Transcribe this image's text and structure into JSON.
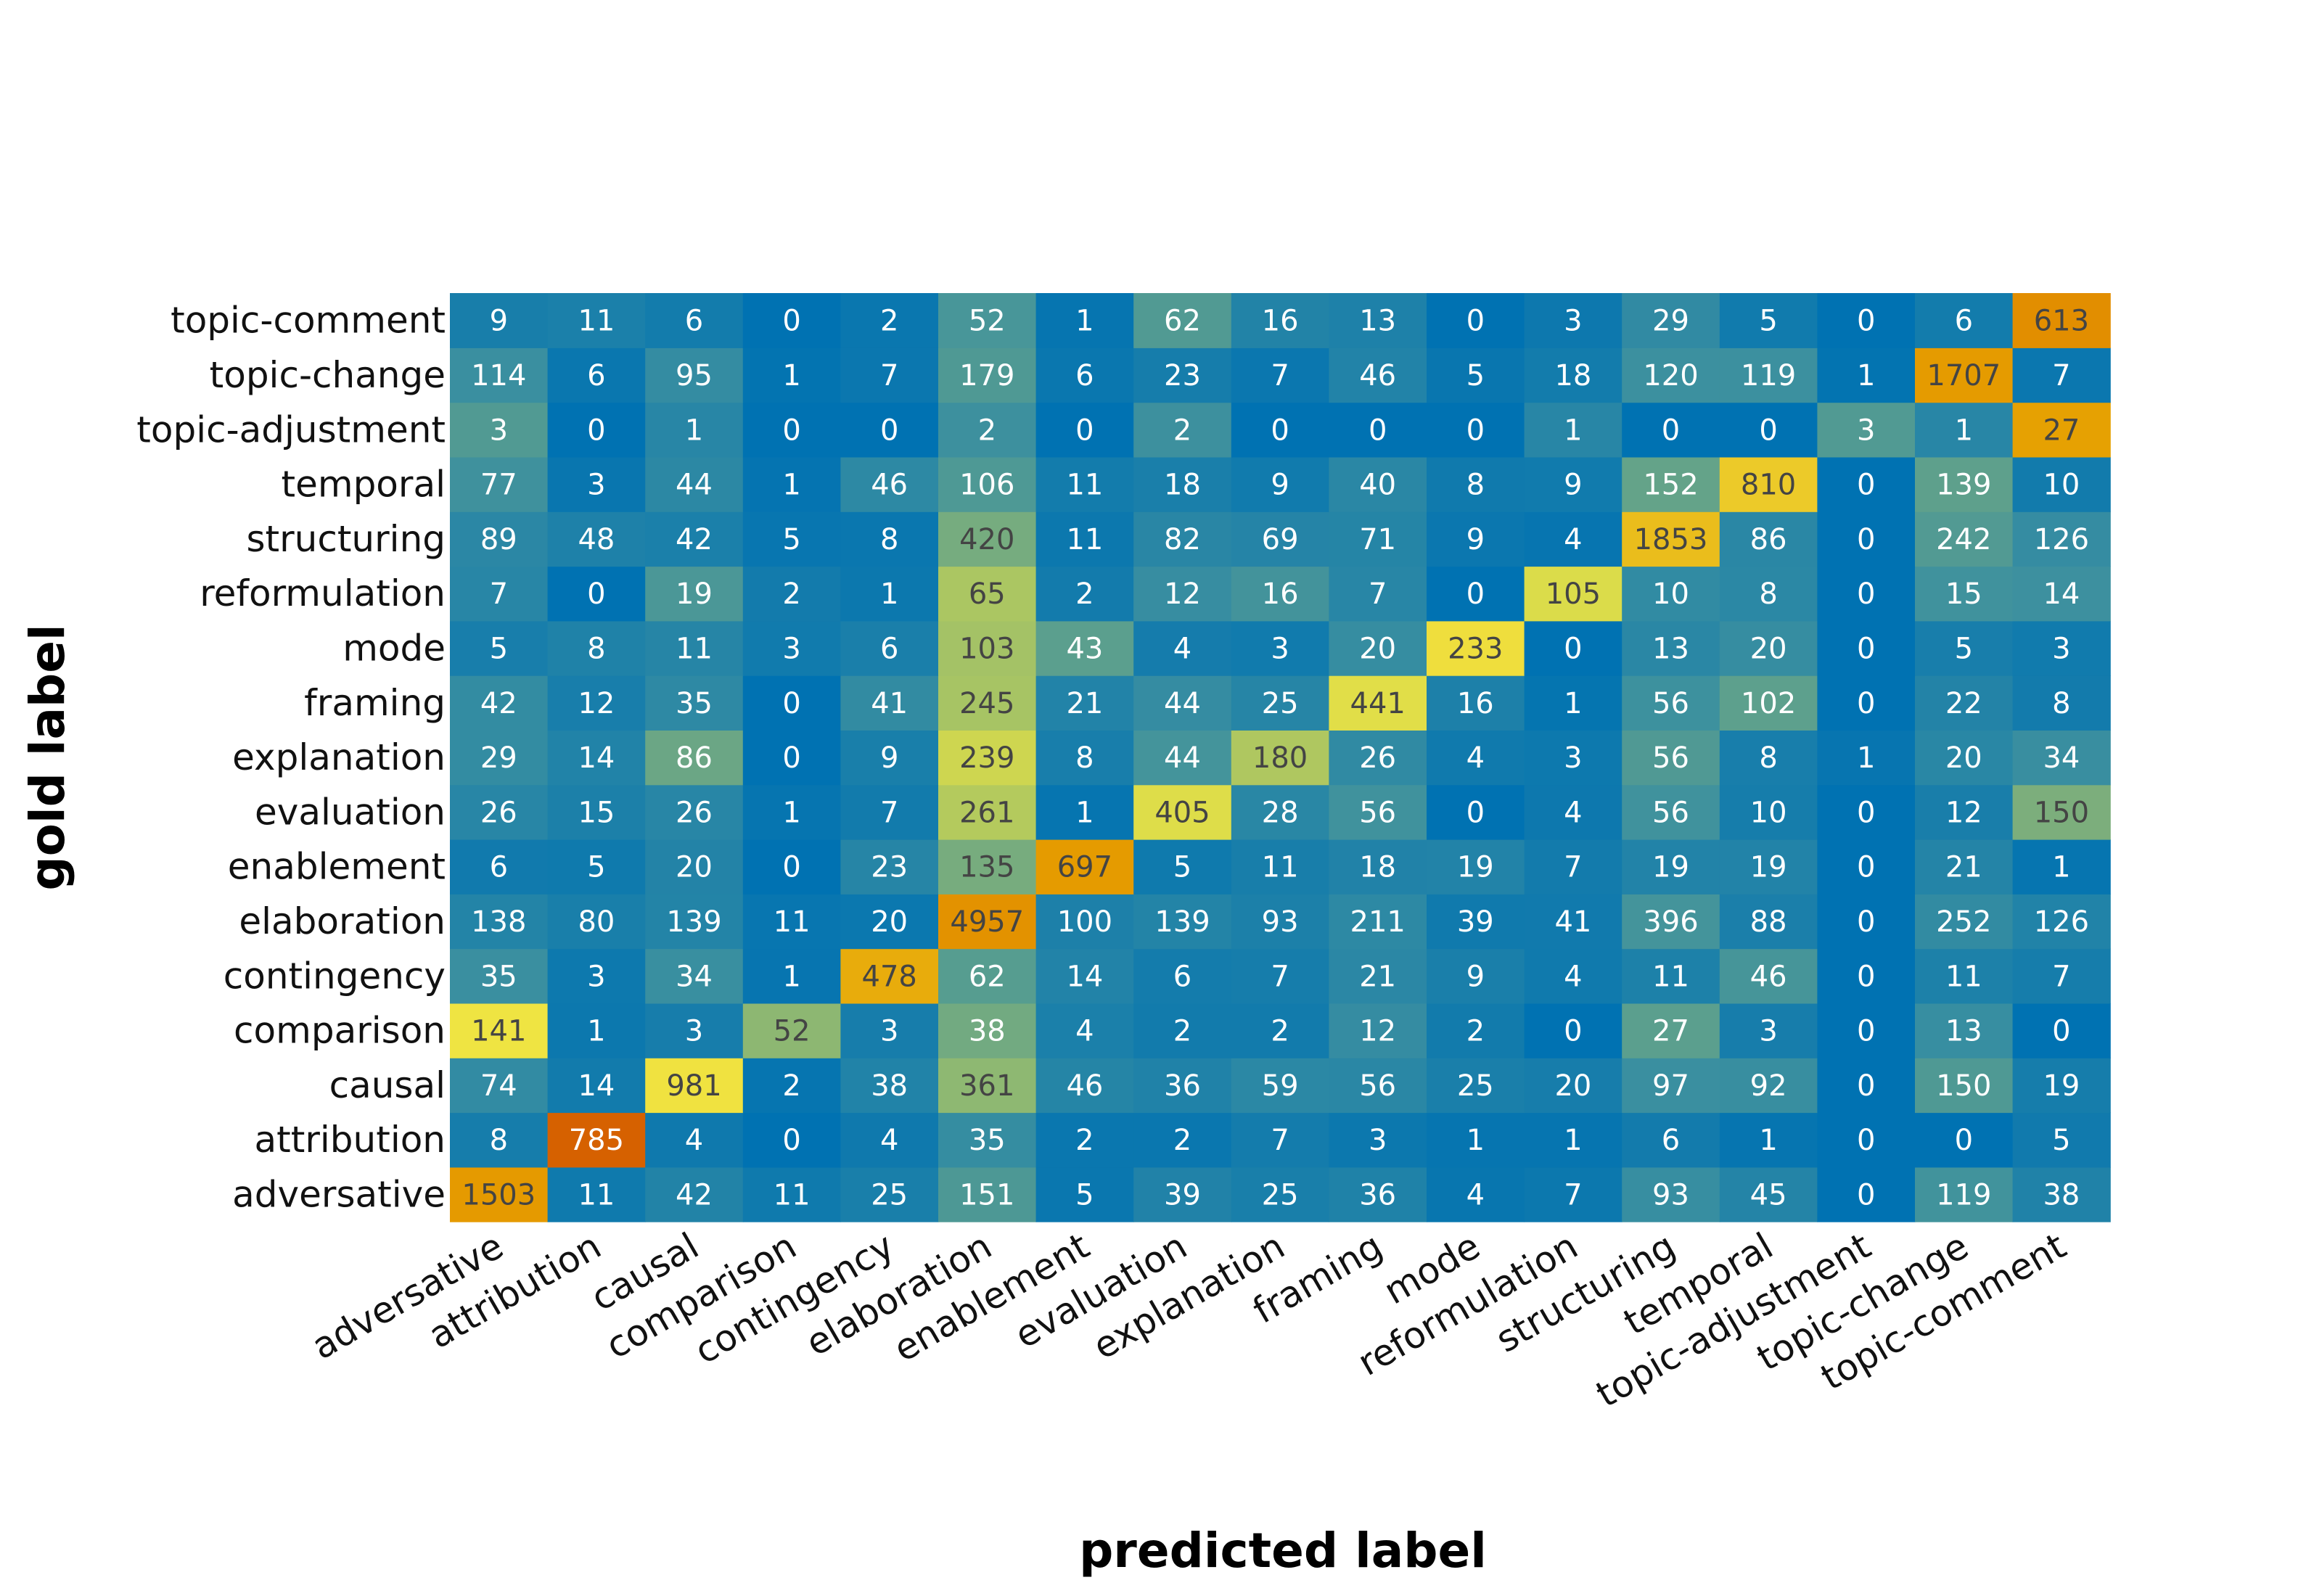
{
  "chart_data": {
    "type": "heatmap",
    "xlabel": "predicted label",
    "ylabel": "gold label",
    "x_categories": [
      "adversative",
      "attribution",
      "causal",
      "comparison",
      "contingency",
      "elaboration",
      "enablement",
      "evaluation",
      "explanation",
      "framing",
      "mode",
      "reformulation",
      "structuring",
      "temporal",
      "topic-adjustment",
      "topic-change",
      "topic-comment"
    ],
    "y_categories": [
      "adversative",
      "attribution",
      "causal",
      "comparison",
      "contingency",
      "elaboration",
      "enablement",
      "evaluation",
      "explanation",
      "framing",
      "mode",
      "reformulation",
      "structuring",
      "temporal",
      "topic-adjustment",
      "topic-change",
      "topic-comment"
    ],
    "y_order": "bottom-to-top",
    "values": [
      [
        1503,
        11,
        42,
        11,
        25,
        151,
        5,
        39,
        25,
        36,
        4,
        7,
        93,
        45,
        0,
        119,
        38
      ],
      [
        8,
        785,
        4,
        0,
        4,
        35,
        2,
        2,
        7,
        3,
        1,
        1,
        6,
        1,
        0,
        0,
        5
      ],
      [
        74,
        14,
        981,
        2,
        38,
        361,
        46,
        36,
        59,
        56,
        25,
        20,
        97,
        92,
        0,
        150,
        19
      ],
      [
        141,
        1,
        3,
        52,
        3,
        38,
        4,
        2,
        2,
        12,
        2,
        0,
        27,
        3,
        0,
        13,
        0
      ],
      [
        35,
        3,
        34,
        1,
        478,
        62,
        14,
        6,
        7,
        21,
        9,
        4,
        11,
        46,
        0,
        11,
        7
      ],
      [
        138,
        80,
        139,
        11,
        20,
        4957,
        100,
        139,
        93,
        211,
        39,
        41,
        396,
        88,
        0,
        252,
        126
      ],
      [
        6,
        5,
        20,
        0,
        23,
        135,
        697,
        5,
        11,
        18,
        19,
        7,
        19,
        19,
        0,
        21,
        1
      ],
      [
        26,
        15,
        26,
        1,
        7,
        261,
        1,
        405,
        28,
        56,
        0,
        4,
        56,
        10,
        0,
        12,
        150
      ],
      [
        29,
        14,
        86,
        0,
        9,
        239,
        8,
        44,
        180,
        26,
        4,
        3,
        56,
        8,
        1,
        20,
        34
      ],
      [
        42,
        12,
        35,
        0,
        41,
        245,
        21,
        44,
        25,
        441,
        16,
        1,
        56,
        102,
        0,
        22,
        8
      ],
      [
        5,
        8,
        11,
        3,
        6,
        103,
        43,
        4,
        3,
        20,
        233,
        0,
        13,
        20,
        0,
        5,
        3
      ],
      [
        7,
        0,
        19,
        2,
        1,
        65,
        2,
        12,
        16,
        7,
        0,
        105,
        10,
        8,
        0,
        15,
        14
      ],
      [
        89,
        48,
        42,
        5,
        8,
        420,
        11,
        82,
        69,
        71,
        9,
        4,
        1853,
        86,
        0,
        242,
        126
      ],
      [
        77,
        3,
        44,
        1,
        46,
        106,
        11,
        18,
        9,
        40,
        8,
        9,
        152,
        810,
        0,
        139,
        10
      ],
      [
        3,
        0,
        1,
        0,
        0,
        2,
        0,
        2,
        0,
        0,
        0,
        1,
        0,
        0,
        3,
        1,
        27
      ],
      [
        114,
        6,
        95,
        1,
        7,
        179,
        6,
        23,
        7,
        46,
        5,
        18,
        120,
        119,
        1,
        1707,
        7
      ],
      [
        9,
        11,
        6,
        0,
        2,
        52,
        1,
        62,
        16,
        13,
        0,
        3,
        29,
        5,
        0,
        6,
        613
      ]
    ],
    "colorscale": [
      "#0072b2",
      "#3a8fa0",
      "#7fb07a",
      "#c8d452",
      "#f0e442",
      "#e69f00",
      "#d55e00"
    ],
    "grid": false,
    "legend": "none"
  }
}
